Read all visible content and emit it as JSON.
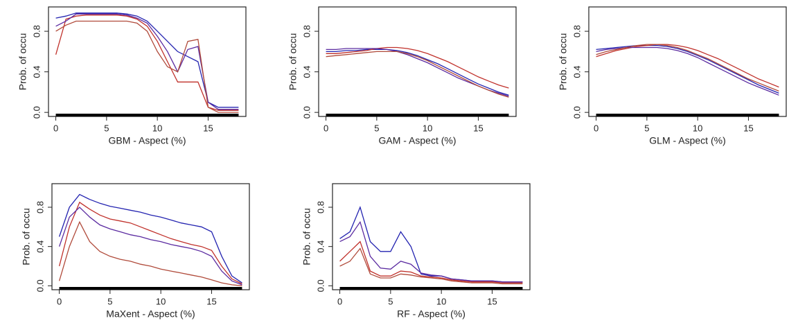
{
  "chart_data": [
    {
      "type": "line",
      "xlabel": "GBM - Aspect (%)",
      "ylabel": "Prob. of occu",
      "x": [
        0,
        1,
        2,
        3,
        4,
        5,
        6,
        7,
        8,
        9,
        10,
        11,
        12,
        13,
        14,
        15,
        16,
        17,
        18
      ],
      "xlim": [
        -0.72,
        18.72
      ],
      "ylim": [
        -0.04,
        1.04
      ],
      "xticks": [
        0,
        5,
        10,
        15
      ],
      "yticks": [
        {
          "value": 0,
          "label": "0.0"
        },
        {
          "value": 0.4,
          "label": "0.4"
        },
        {
          "value": 0.8,
          "label": "0.8"
        }
      ],
      "series": [
        {
          "color": "#2323b0",
          "values": [
            0.93,
            0.95,
            0.98,
            0.98,
            0.98,
            0.98,
            0.98,
            0.97,
            0.95,
            0.9,
            0.8,
            0.7,
            0.6,
            0.55,
            0.5,
            0.1,
            0.05,
            0.05,
            0.05
          ]
        },
        {
          "color": "#c0302a",
          "values": [
            0.57,
            0.92,
            0.95,
            0.96,
            0.96,
            0.96,
            0.96,
            0.95,
            0.92,
            0.85,
            0.7,
            0.5,
            0.3,
            0.3,
            0.3,
            0.05,
            0.02,
            0.02,
            0.02
          ]
        },
        {
          "color": "#5a2aa0",
          "values": [
            0.85,
            0.9,
            0.97,
            0.97,
            0.97,
            0.97,
            0.97,
            0.96,
            0.93,
            0.88,
            0.75,
            0.6,
            0.4,
            0.62,
            0.65,
            0.1,
            0.03,
            0.03,
            0.03
          ]
        },
        {
          "color": "#b04a3a",
          "values": [
            0.8,
            0.86,
            0.9,
            0.9,
            0.9,
            0.9,
            0.9,
            0.9,
            0.88,
            0.8,
            0.6,
            0.45,
            0.4,
            0.7,
            0.72,
            0.05,
            0.0,
            0.0,
            0.0
          ]
        }
      ]
    },
    {
      "type": "line",
      "xlabel": "GAM - Aspect (%)",
      "ylabel": "Prob. of occu",
      "x": [
        0,
        1,
        2,
        3,
        4,
        5,
        6,
        7,
        8,
        9,
        10,
        11,
        12,
        13,
        14,
        15,
        16,
        17,
        18
      ],
      "xlim": [
        -0.72,
        18.72
      ],
      "ylim": [
        -0.04,
        1.04
      ],
      "xticks": [
        0,
        5,
        10,
        15
      ],
      "yticks": [
        {
          "value": 0,
          "label": "0.0"
        },
        {
          "value": 0.4,
          "label": "0.4"
        },
        {
          "value": 0.8,
          "label": "0.8"
        }
      ],
      "series": [
        {
          "color": "#2323b0",
          "values": [
            0.6,
            0.6,
            0.61,
            0.61,
            0.62,
            0.62,
            0.62,
            0.61,
            0.59,
            0.56,
            0.52,
            0.48,
            0.43,
            0.38,
            0.33,
            0.28,
            0.24,
            0.2,
            0.17
          ]
        },
        {
          "color": "#c0302a",
          "values": [
            0.58,
            0.58,
            0.59,
            0.6,
            0.61,
            0.63,
            0.64,
            0.64,
            0.63,
            0.61,
            0.58,
            0.54,
            0.5,
            0.45,
            0.4,
            0.35,
            0.31,
            0.27,
            0.24
          ]
        },
        {
          "color": "#5a2aa0",
          "values": [
            0.62,
            0.62,
            0.63,
            0.63,
            0.63,
            0.63,
            0.62,
            0.6,
            0.57,
            0.53,
            0.49,
            0.44,
            0.39,
            0.34,
            0.3,
            0.26,
            0.22,
            0.19,
            0.16
          ]
        },
        {
          "color": "#b04a3a",
          "values": [
            0.55,
            0.56,
            0.57,
            0.58,
            0.59,
            0.6,
            0.6,
            0.6,
            0.58,
            0.55,
            0.51,
            0.46,
            0.41,
            0.36,
            0.31,
            0.26,
            0.22,
            0.18,
            0.15
          ]
        }
      ]
    },
    {
      "type": "line",
      "xlabel": "GLM - Aspect (%)",
      "ylabel": "Prob. of occu",
      "x": [
        0,
        1,
        2,
        3,
        4,
        5,
        6,
        7,
        8,
        9,
        10,
        11,
        12,
        13,
        14,
        15,
        16,
        17,
        18
      ],
      "xlim": [
        -0.72,
        18.72
      ],
      "ylim": [
        -0.04,
        1.04
      ],
      "xticks": [
        0,
        5,
        10,
        15
      ],
      "yticks": [
        {
          "value": 0,
          "label": "0.0"
        },
        {
          "value": 0.4,
          "label": "0.4"
        },
        {
          "value": 0.8,
          "label": "0.8"
        }
      ],
      "series": [
        {
          "color": "#2323b0",
          "values": [
            0.62,
            0.63,
            0.64,
            0.65,
            0.66,
            0.66,
            0.66,
            0.65,
            0.63,
            0.6,
            0.56,
            0.52,
            0.47,
            0.42,
            0.37,
            0.32,
            0.27,
            0.23,
            0.19
          ]
        },
        {
          "color": "#c0302a",
          "values": [
            0.55,
            0.58,
            0.61,
            0.63,
            0.65,
            0.66,
            0.67,
            0.67,
            0.66,
            0.64,
            0.61,
            0.57,
            0.53,
            0.48,
            0.43,
            0.38,
            0.33,
            0.29,
            0.25
          ]
        },
        {
          "color": "#5a2aa0",
          "values": [
            0.6,
            0.62,
            0.63,
            0.64,
            0.64,
            0.64,
            0.64,
            0.63,
            0.61,
            0.58,
            0.54,
            0.49,
            0.44,
            0.39,
            0.34,
            0.29,
            0.25,
            0.21,
            0.17
          ]
        },
        {
          "color": "#b04a3a",
          "values": [
            0.57,
            0.6,
            0.62,
            0.64,
            0.66,
            0.67,
            0.67,
            0.66,
            0.64,
            0.61,
            0.57,
            0.53,
            0.48,
            0.43,
            0.38,
            0.33,
            0.29,
            0.25,
            0.21
          ]
        }
      ]
    },
    {
      "type": "line",
      "xlabel": "MaXent - Aspect (%)",
      "ylabel": "Prob. of occu",
      "x": [
        0,
        1,
        2,
        3,
        4,
        5,
        6,
        7,
        8,
        9,
        10,
        11,
        12,
        13,
        14,
        15,
        16,
        17,
        18
      ],
      "xlim": [
        -0.72,
        18.72
      ],
      "ylim": [
        -0.04,
        1.04
      ],
      "xticks": [
        0,
        5,
        10,
        15
      ],
      "yticks": [
        {
          "value": 0,
          "label": "0.0"
        },
        {
          "value": 0.4,
          "label": "0.4"
        },
        {
          "value": 0.8,
          "label": "0.8"
        }
      ],
      "series": [
        {
          "color": "#2323b0",
          "values": [
            0.5,
            0.8,
            0.93,
            0.88,
            0.84,
            0.81,
            0.79,
            0.77,
            0.75,
            0.72,
            0.7,
            0.67,
            0.64,
            0.62,
            0.6,
            0.55,
            0.3,
            0.1,
            0.03
          ]
        },
        {
          "color": "#c0302a",
          "values": [
            0.2,
            0.6,
            0.85,
            0.78,
            0.72,
            0.68,
            0.66,
            0.64,
            0.6,
            0.56,
            0.52,
            0.48,
            0.45,
            0.42,
            0.4,
            0.36,
            0.2,
            0.07,
            0.02
          ]
        },
        {
          "color": "#5a2aa0",
          "values": [
            0.4,
            0.7,
            0.8,
            0.7,
            0.62,
            0.58,
            0.55,
            0.52,
            0.5,
            0.47,
            0.45,
            0.42,
            0.4,
            0.38,
            0.35,
            0.3,
            0.15,
            0.05,
            0.01
          ]
        },
        {
          "color": "#b04a3a",
          "values": [
            0.05,
            0.4,
            0.65,
            0.45,
            0.35,
            0.3,
            0.27,
            0.25,
            0.22,
            0.2,
            0.17,
            0.15,
            0.13,
            0.11,
            0.09,
            0.06,
            0.03,
            0.01,
            0.0
          ]
        }
      ]
    },
    {
      "type": "line",
      "xlabel": "RF - Aspect (%)",
      "ylabel": "Prob. of occu",
      "x": [
        0,
        1,
        2,
        3,
        4,
        5,
        6,
        7,
        8,
        9,
        10,
        11,
        12,
        13,
        14,
        15,
        16,
        17,
        18
      ],
      "xlim": [
        -0.72,
        18.72
      ],
      "ylim": [
        -0.04,
        1.04
      ],
      "xticks": [
        0,
        5,
        10,
        15
      ],
      "yticks": [
        {
          "value": 0,
          "label": "0.0"
        },
        {
          "value": 0.4,
          "label": "0.4"
        },
        {
          "value": 0.8,
          "label": "0.8"
        }
      ],
      "series": [
        {
          "color": "#2323b0",
          "values": [
            0.48,
            0.55,
            0.8,
            0.45,
            0.35,
            0.35,
            0.55,
            0.4,
            0.12,
            0.1,
            0.1,
            0.07,
            0.06,
            0.05,
            0.05,
            0.05,
            0.04,
            0.04,
            0.04
          ]
        },
        {
          "color": "#c0302a",
          "values": [
            0.25,
            0.35,
            0.45,
            0.15,
            0.1,
            0.1,
            0.15,
            0.14,
            0.1,
            0.09,
            0.08,
            0.06,
            0.05,
            0.04,
            0.04,
            0.04,
            0.03,
            0.03,
            0.03
          ]
        },
        {
          "color": "#5a2aa0",
          "values": [
            0.45,
            0.5,
            0.65,
            0.3,
            0.18,
            0.17,
            0.25,
            0.22,
            0.13,
            0.11,
            0.1,
            0.07,
            0.06,
            0.05,
            0.05,
            0.05,
            0.04,
            0.04,
            0.04
          ]
        },
        {
          "color": "#b04a3a",
          "values": [
            0.2,
            0.25,
            0.38,
            0.12,
            0.08,
            0.08,
            0.12,
            0.11,
            0.09,
            0.08,
            0.07,
            0.05,
            0.04,
            0.03,
            0.03,
            0.03,
            0.02,
            0.02,
            0.02
          ]
        }
      ]
    }
  ]
}
